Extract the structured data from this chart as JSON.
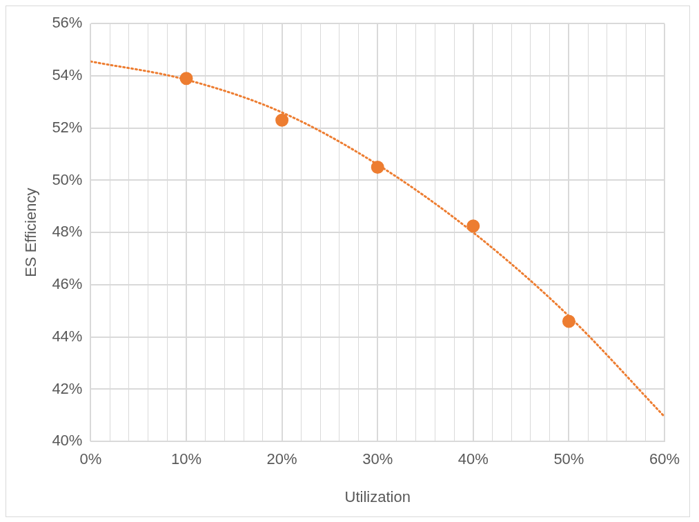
{
  "chart_data": {
    "type": "scatter",
    "xlabel": "Utilization",
    "ylabel": "ES Efficiency",
    "grid": true,
    "legend": false,
    "xlim": [
      0,
      60
    ],
    "ylim": [
      40,
      56
    ],
    "xticks": [
      {
        "value": 0,
        "label": "0%"
      },
      {
        "value": 2,
        "label": null
      },
      {
        "value": 4,
        "label": null
      },
      {
        "value": 6,
        "label": null
      },
      {
        "value": 8,
        "label": null
      },
      {
        "value": 10,
        "label": "10%"
      },
      {
        "value": 12,
        "label": null
      },
      {
        "value": 14,
        "label": null
      },
      {
        "value": 16,
        "label": null
      },
      {
        "value": 18,
        "label": null
      },
      {
        "value": 20,
        "label": "20%"
      },
      {
        "value": 22,
        "label": null
      },
      {
        "value": 24,
        "label": null
      },
      {
        "value": 26,
        "label": null
      },
      {
        "value": 28,
        "label": null
      },
      {
        "value": 30,
        "label": "30%"
      },
      {
        "value": 32,
        "label": null
      },
      {
        "value": 34,
        "label": null
      },
      {
        "value": 36,
        "label": null
      },
      {
        "value": 38,
        "label": null
      },
      {
        "value": 40,
        "label": "40%"
      },
      {
        "value": 42,
        "label": null
      },
      {
        "value": 44,
        "label": null
      },
      {
        "value": 46,
        "label": null
      },
      {
        "value": 48,
        "label": null
      },
      {
        "value": 50,
        "label": "50%"
      },
      {
        "value": 52,
        "label": null
      },
      {
        "value": 54,
        "label": null
      },
      {
        "value": 56,
        "label": null
      },
      {
        "value": 58,
        "label": null
      },
      {
        "value": 60,
        "label": "60%"
      }
    ],
    "yticks": [
      {
        "value": 40,
        "label": "40%"
      },
      {
        "value": 42,
        "label": "42%"
      },
      {
        "value": 44,
        "label": "44%"
      },
      {
        "value": 46,
        "label": "46%"
      },
      {
        "value": 48,
        "label": "48%"
      },
      {
        "value": 50,
        "label": "50%"
      },
      {
        "value": 52,
        "label": "52%"
      },
      {
        "value": 54,
        "label": "54%"
      },
      {
        "value": 56,
        "label": "56%"
      }
    ],
    "series": [
      {
        "type": "line",
        "color": "#ed7d31",
        "marker": "none",
        "line_style": "dotted",
        "x": [
          0,
          10,
          20,
          30,
          40,
          50,
          60
        ],
        "values": [
          54.55,
          53.85,
          52.6,
          50.6,
          48.0,
          44.8,
          40.95
        ]
      },
      {
        "type": "scatter",
        "color": "#ed7d31",
        "marker": "circle",
        "x": [
          10,
          20,
          30,
          40,
          50
        ],
        "values": [
          53.9,
          52.3,
          50.5,
          48.25,
          44.6
        ]
      }
    ]
  }
}
